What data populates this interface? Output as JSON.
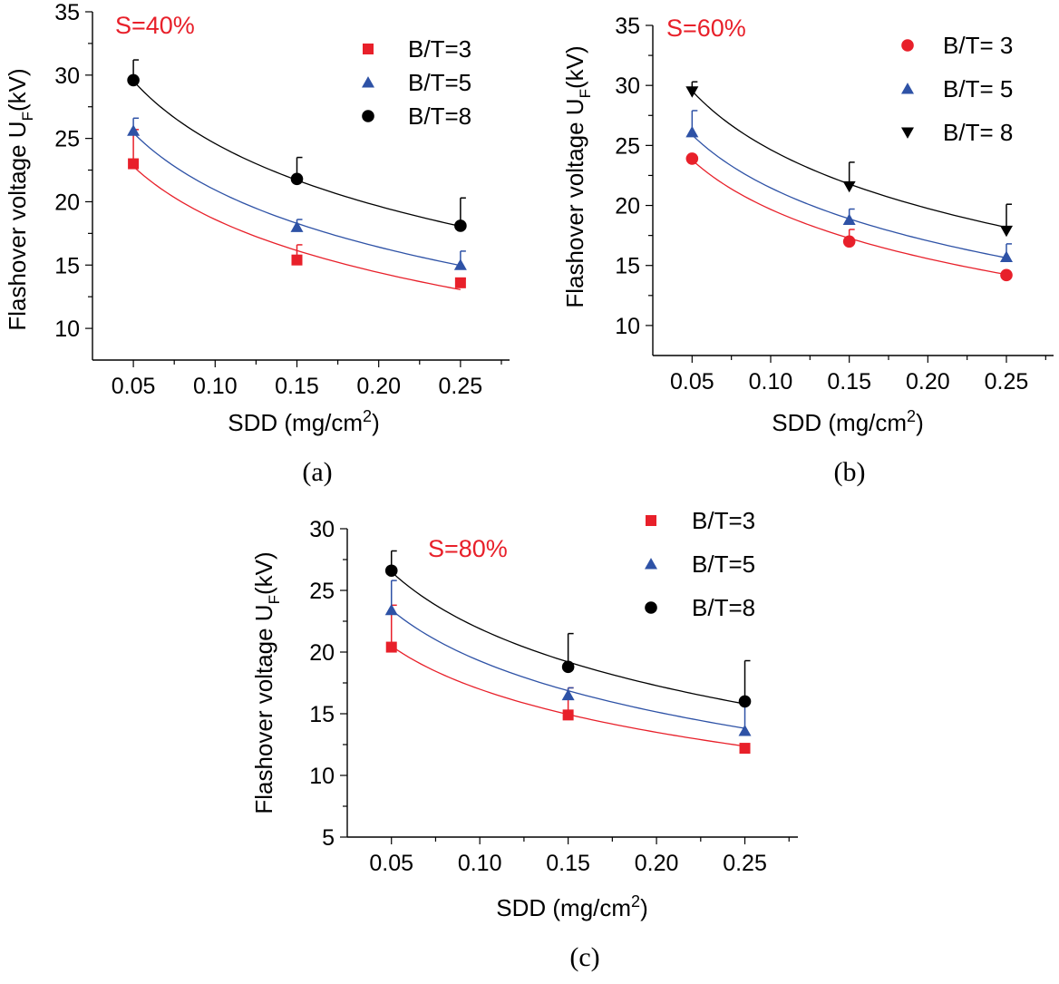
{
  "chart_data": [
    {
      "type": "scatter",
      "panel_label": "(a)",
      "annotation": "S=40%",
      "annotation_color": "#e8202a",
      "xlabel": "SDD (mg/cm",
      "xlabel_sup": "2",
      "xlabel_end": ")",
      "ylabel": "Flashover voltage U",
      "ylabel_sub": "F",
      "ylabel_end": "(kV)",
      "xlim": [
        0.025,
        0.28
      ],
      "ylim": [
        7.5,
        35
      ],
      "xticks": [
        0.05,
        0.1,
        0.15,
        0.2,
        0.25
      ],
      "xtick_labels": [
        "0.05",
        "0.10",
        "0.15",
        "0.20",
        "0.25"
      ],
      "yticks": [
        10,
        15,
        20,
        25,
        30,
        35
      ],
      "ytick_labels": [
        "10",
        "15",
        "20",
        "25",
        "30",
        "35"
      ],
      "legend_position": "top-right",
      "x": [
        0.05,
        0.15,
        0.25
      ],
      "series": [
        {
          "name": "B/T=3",
          "marker": "square",
          "color": "#e8202a",
          "values": [
            23.0,
            15.4,
            13.6
          ],
          "errors": [
            2.7,
            1.2,
            0.3
          ],
          "fit": [
            22.9,
            15.8,
            13.3
          ]
        },
        {
          "name": "B/T=5",
          "marker": "triangle-up",
          "color": "#2e52a6",
          "values": [
            25.6,
            18.0,
            15.0
          ],
          "errors": [
            1.0,
            0.6,
            1.1
          ],
          "fit": [
            25.5,
            18.1,
            15.1
          ]
        },
        {
          "name": "B/T=8",
          "marker": "circle",
          "color": "#000000",
          "values": [
            29.6,
            21.8,
            18.1
          ],
          "errors": [
            1.6,
            1.7,
            2.2
          ],
          "fit": [
            29.6,
            21.5,
            18.2
          ]
        }
      ]
    },
    {
      "type": "scatter",
      "panel_label": "(b)",
      "annotation": "S=60%",
      "annotation_color": "#e8202a",
      "xlabel": "SDD (mg/cm",
      "xlabel_sup": "2",
      "xlabel_end": ")",
      "ylabel": "Flashover voltage U",
      "ylabel_sub": "F",
      "ylabel_end": "(kV)",
      "xlim": [
        0.025,
        0.28
      ],
      "ylim": [
        7.5,
        35
      ],
      "xticks": [
        0.05,
        0.1,
        0.15,
        0.2,
        0.25
      ],
      "xtick_labels": [
        "0.05",
        "0.10",
        "0.15",
        "0.20",
        "0.25"
      ],
      "yticks": [
        10,
        15,
        20,
        25,
        30,
        35
      ],
      "ytick_labels": [
        "10",
        "15",
        "20",
        "25",
        "30",
        "35"
      ],
      "legend_position": "top-right",
      "x": [
        0.05,
        0.15,
        0.25
      ],
      "series": [
        {
          "name": "B/T= 3",
          "marker": "circle",
          "color": "#e8202a",
          "values": [
            23.9,
            17.0,
            14.2
          ],
          "errors": [
            0,
            1.0,
            0
          ],
          "fit": [
            23.9,
            16.9,
            14.5
          ]
        },
        {
          "name": "B/T= 5",
          "marker": "triangle-up",
          "color": "#2e52a6",
          "values": [
            26.1,
            18.8,
            15.7
          ],
          "errors": [
            1.8,
            0.9,
            1.1
          ],
          "fit": [
            26.0,
            18.5,
            15.9
          ]
        },
        {
          "name": "B/T= 8",
          "marker": "triangle-down",
          "color": "#000000",
          "values": [
            29.5,
            21.6,
            17.9
          ],
          "errors": [
            0.8,
            2.0,
            2.2
          ],
          "fit": [
            29.6,
            21.6,
            18.3
          ]
        }
      ]
    },
    {
      "type": "scatter",
      "panel_label": "(c)",
      "annotation": "S=80%",
      "annotation_color": "#e8202a",
      "xlabel": "SDD (mg/cm",
      "xlabel_sup": "2",
      "xlabel_end": ")",
      "ylabel": "Flashover voltage U",
      "ylabel_sub": "F",
      "ylabel_end": "(kV)",
      "xlim": [
        0.025,
        0.28
      ],
      "ylim": [
        5,
        30
      ],
      "xticks": [
        0.05,
        0.1,
        0.15,
        0.2,
        0.25
      ],
      "xtick_labels": [
        "0.05",
        "0.10",
        "0.15",
        "0.20",
        "0.25"
      ],
      "yticks": [
        5,
        10,
        15,
        20,
        25,
        30
      ],
      "ytick_labels": [
        "5",
        "10",
        "15",
        "20",
        "25",
        "30"
      ],
      "legend_position": "top-right",
      "x": [
        0.05,
        0.15,
        0.25
      ],
      "series": [
        {
          "name": "B/T=3",
          "marker": "square",
          "color": "#e8202a",
          "values": [
            20.4,
            14.9,
            12.2
          ],
          "errors": [
            3.4,
            2.2,
            0
          ],
          "fit": [
            20.5,
            14.9,
            12.4
          ]
        },
        {
          "name": "B/T=5",
          "marker": "triangle-up",
          "color": "#2e52a6",
          "values": [
            23.4,
            16.5,
            13.6
          ],
          "errors": [
            2.4,
            0.6,
            2.6
          ],
          "fit": [
            23.5,
            16.6,
            14.0
          ]
        },
        {
          "name": "B/T=8",
          "marker": "circle",
          "color": "#000000",
          "values": [
            26.6,
            18.8,
            16.0
          ],
          "errors": [
            1.6,
            2.7,
            3.3
          ],
          "fit": [
            26.6,
            18.9,
            16.0
          ]
        }
      ]
    }
  ]
}
